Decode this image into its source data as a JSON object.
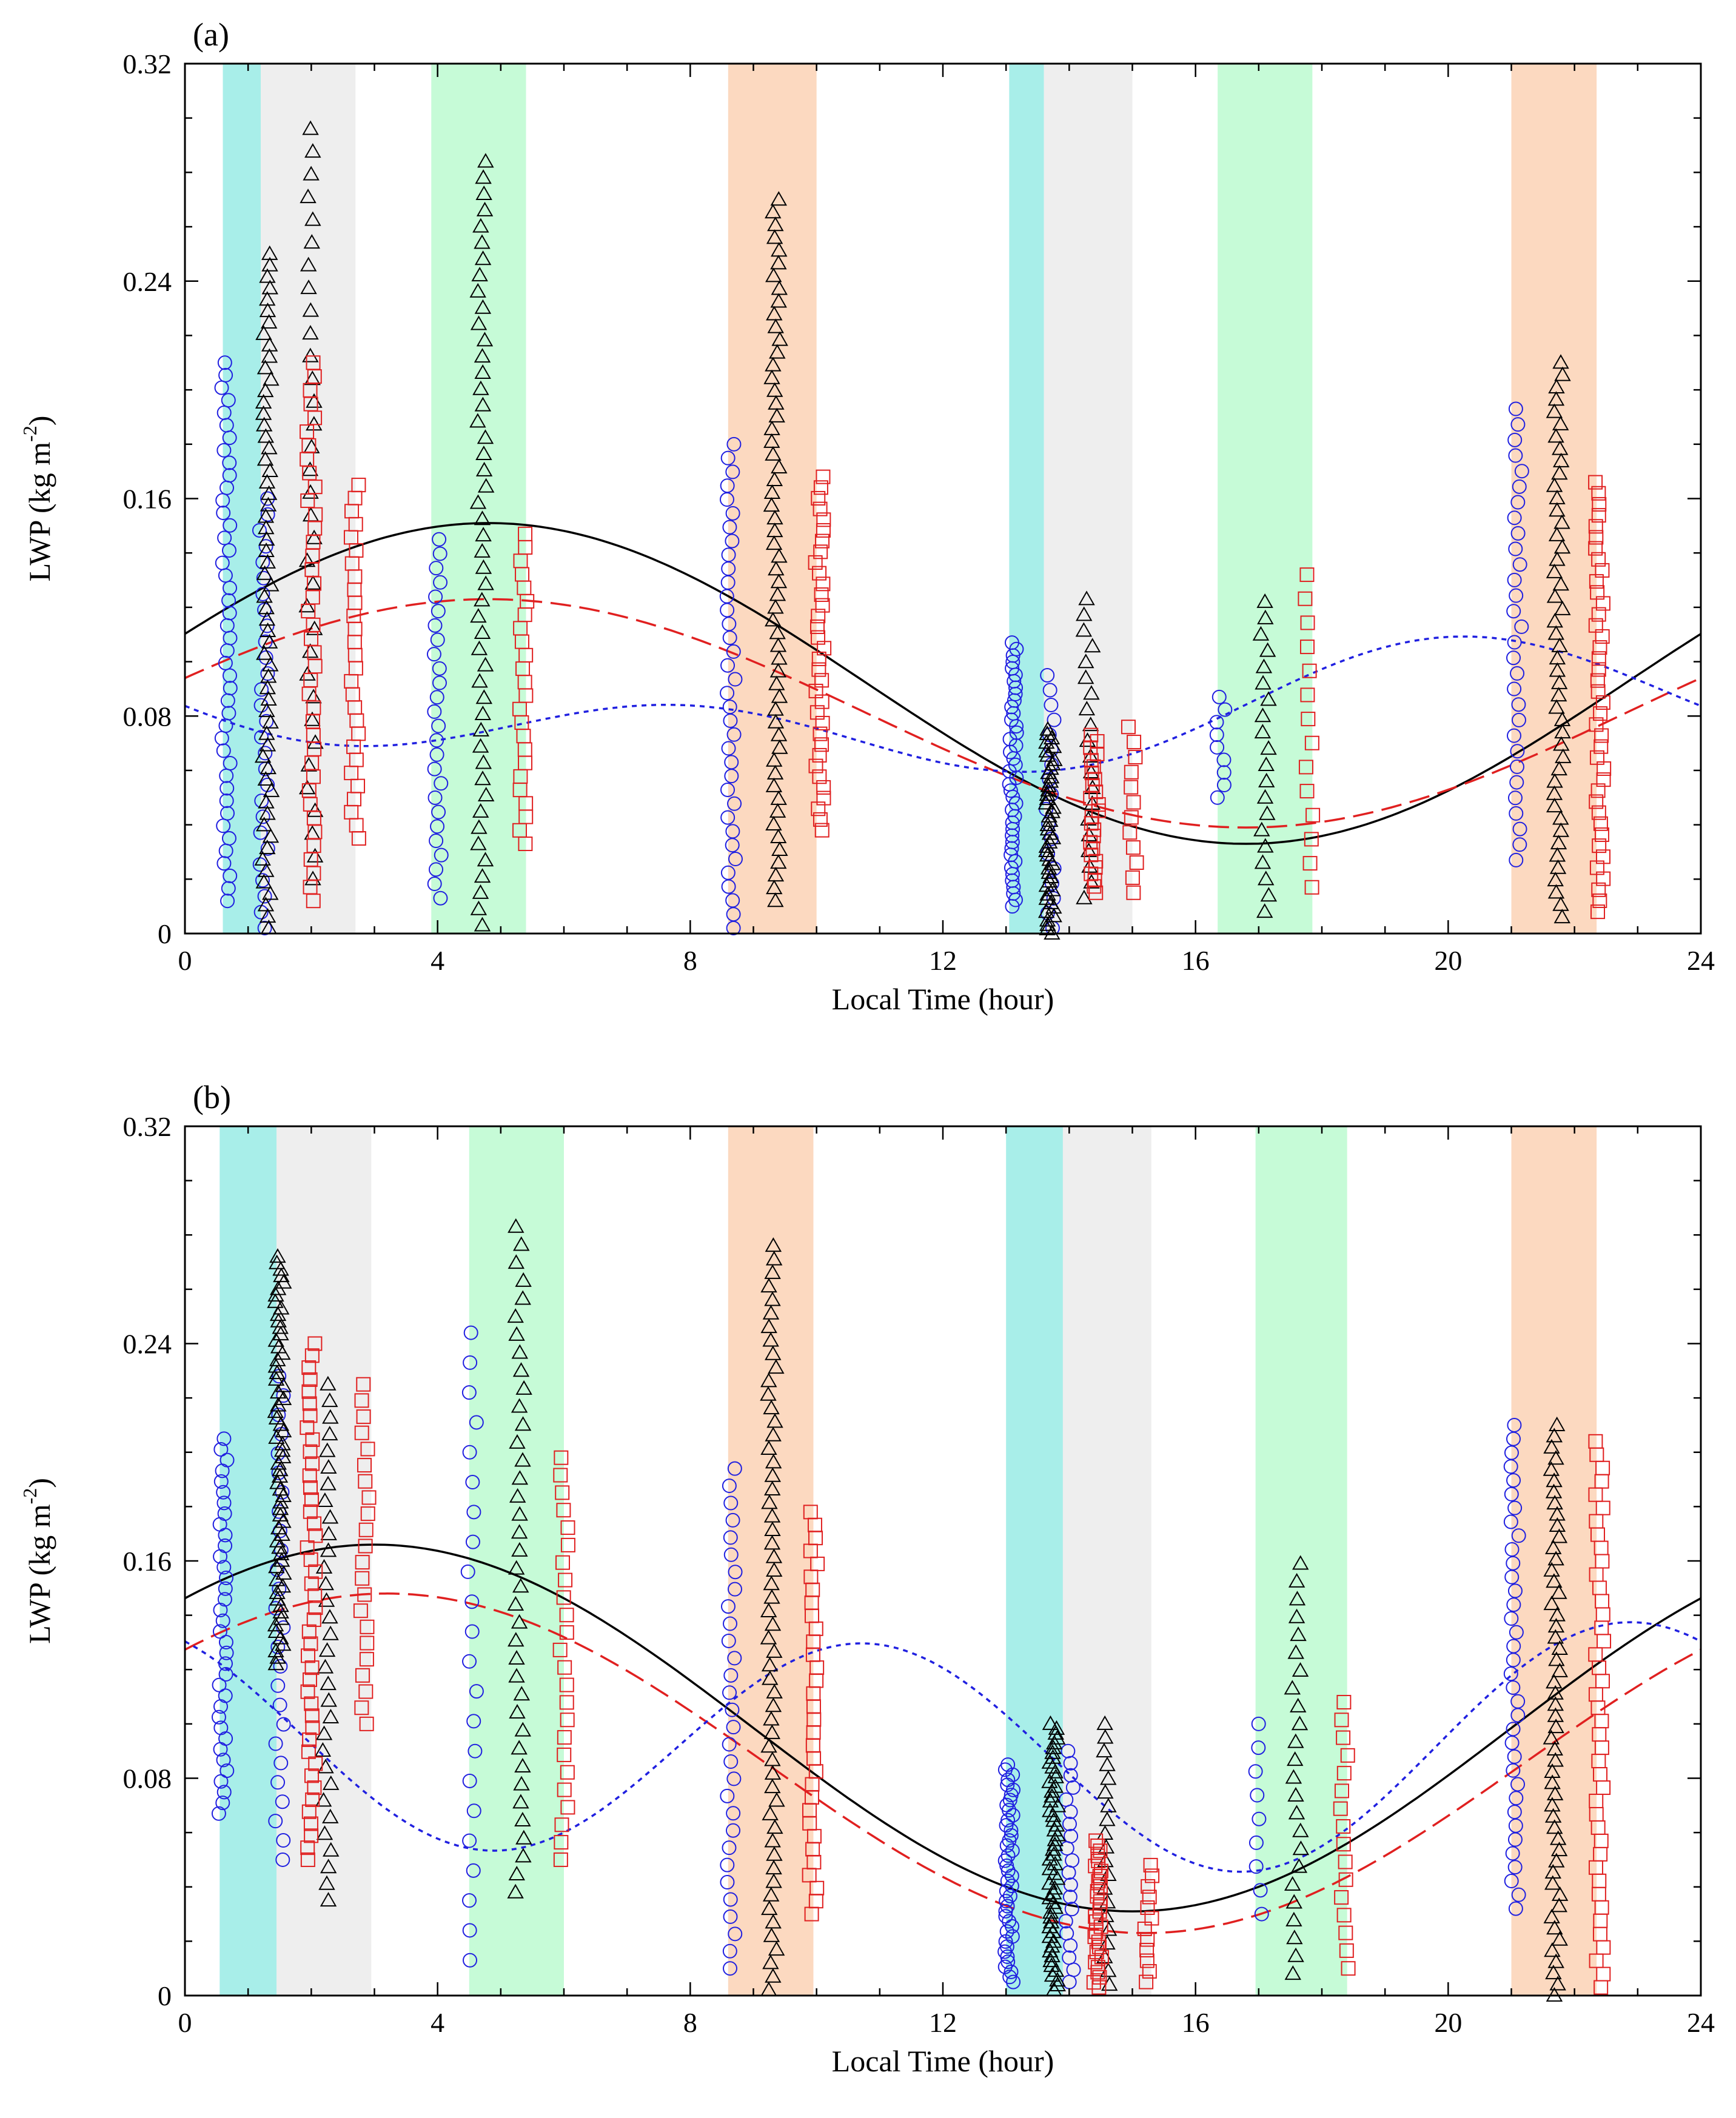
{
  "chart_data": [
    {
      "type": "scatter",
      "panel_label": "(a)",
      "xlabel": "Local Time (hour)",
      "ylabel_main": "LWP (kg m",
      "ylabel_sup": "-2",
      "ylabel_close": ")",
      "xlim": [
        0,
        24
      ],
      "ylim": [
        0,
        0.32
      ],
      "xticks": [
        0,
        4,
        8,
        12,
        16,
        20,
        24
      ],
      "xtick_labels": [
        "0",
        "4",
        "8",
        "12",
        "16",
        "20",
        "24"
      ],
      "yticks": [
        0,
        0.08,
        0.16,
        0.24,
        0.32
      ],
      "ytick_labels": [
        "0",
        "0.08",
        "0.16",
        "0.24",
        "0.32"
      ],
      "bands": [
        {
          "x0": 0.6,
          "x1": 1.2,
          "color": "#a8eee9"
        },
        {
          "x0": 1.2,
          "x1": 2.7,
          "color": "#eeeeee"
        },
        {
          "x0": 3.9,
          "x1": 5.4,
          "color": "#c6fbd7"
        },
        {
          "x0": 8.6,
          "x1": 10.0,
          "color": "#fcd9c0"
        },
        {
          "x0": 13.05,
          "x1": 13.6,
          "color": "#a8eee9"
        },
        {
          "x0": 13.6,
          "x1": 15.0,
          "color": "#eeeeee"
        },
        {
          "x0": 16.35,
          "x1": 17.85,
          "color": "#c6fbd7"
        },
        {
          "x0": 21.0,
          "x1": 22.35,
          "color": "#fcd9c0"
        }
      ],
      "series": [
        {
          "name": "circles",
          "marker": "circle",
          "color": "#2020e0",
          "groups": [
            {
              "x": 0.65,
              "ymin": 0.012,
              "ymax": 0.21,
              "n": 44
            },
            {
              "x": 1.25,
              "ymin": 0.002,
              "ymax": 0.16,
              "n": 28
            },
            {
              "x": 4.0,
              "ymin": 0.013,
              "ymax": 0.145,
              "n": 26
            },
            {
              "x": 8.65,
              "ymin": 0.002,
              "ymax": 0.18,
              "n": 36
            },
            {
              "x": 13.1,
              "ymin": 0.01,
              "ymax": 0.107,
              "n": 42
            },
            {
              "x": 13.7,
              "ymin": 0.002,
              "ymax": 0.095,
              "n": 18
            },
            {
              "x": 16.4,
              "ymin": 0.05,
              "ymax": 0.087,
              "n": 9
            },
            {
              "x": 21.1,
              "ymin": 0.027,
              "ymax": 0.193,
              "n": 30
            }
          ]
        },
        {
          "name": "triangles",
          "marker": "triangle",
          "color": "#000000",
          "groups": [
            {
              "x": 1.3,
              "ymin": 0.002,
              "ymax": 0.25,
              "n": 60
            },
            {
              "x": 2.0,
              "ymin": 0.02,
              "ymax": 0.296,
              "n": 34
            },
            {
              "x": 4.7,
              "ymin": 0.003,
              "ymax": 0.284,
              "n": 48
            },
            {
              "x": 9.35,
              "ymin": 0.012,
              "ymax": 0.27,
              "n": 56
            },
            {
              "x": 13.7,
              "ymin": 0.0,
              "ymax": 0.075,
              "n": 48
            },
            {
              "x": 14.3,
              "ymin": 0.013,
              "ymax": 0.123,
              "n": 20
            },
            {
              "x": 17.1,
              "ymin": 0.008,
              "ymax": 0.122,
              "n": 20
            },
            {
              "x": 21.75,
              "ymin": 0.006,
              "ymax": 0.21,
              "n": 46
            }
          ]
        },
        {
          "name": "squares",
          "marker": "square",
          "color": "#e02020",
          "groups": [
            {
              "x": 2.0,
              "ymin": 0.012,
              "ymax": 0.21,
              "n": 40
            },
            {
              "x": 2.7,
              "ymin": 0.035,
              "ymax": 0.165,
              "n": 28
            },
            {
              "x": 5.35,
              "ymin": 0.033,
              "ymax": 0.147,
              "n": 24
            },
            {
              "x": 10.05,
              "ymin": 0.038,
              "ymax": 0.168,
              "n": 34
            },
            {
              "x": 14.4,
              "ymin": 0.015,
              "ymax": 0.073,
              "n": 26
            },
            {
              "x": 15.0,
              "ymin": 0.015,
              "ymax": 0.076,
              "n": 12
            },
            {
              "x": 17.8,
              "ymin": 0.017,
              "ymax": 0.132,
              "n": 14
            },
            {
              "x": 22.4,
              "ymin": 0.008,
              "ymax": 0.166,
              "n": 40
            }
          ]
        }
      ],
      "fits": [
        {
          "name": "solid",
          "color": "#000000",
          "dash": "",
          "mean": 0.092,
          "amp": 0.059,
          "peak_hour": 4.8
        },
        {
          "name": "long-dash",
          "color": "#e02020",
          "dash": "34 14",
          "mean": 0.081,
          "amp": 0.042,
          "peak_hour": 4.8
        },
        {
          "name": "short-dash",
          "color": "#2020e0",
          "dash": "8 8",
          "mean": 0.081,
          "amp1": 0.0135,
          "peak1_hour": 21.4,
          "amp2": 0.0155,
          "peak2_hour": 8.0
        }
      ]
    },
    {
      "type": "scatter",
      "panel_label": "(b)",
      "xlabel": "Local Time (hour)",
      "ylabel_main": "LWP (kg m",
      "ylabel_sup": "-2",
      "ylabel_close": ")",
      "xlim": [
        0,
        24
      ],
      "ylim": [
        0,
        0.32
      ],
      "xticks": [
        0,
        4,
        8,
        12,
        16,
        20,
        24
      ],
      "xtick_labels": [
        "0",
        "4",
        "8",
        "12",
        "16",
        "20",
        "24"
      ],
      "yticks": [
        0,
        0.08,
        0.16,
        0.24,
        0.32
      ],
      "ytick_labels": [
        "0",
        "0.08",
        "0.16",
        "0.24",
        "0.32"
      ],
      "bands": [
        {
          "x0": 0.55,
          "x1": 1.45,
          "color": "#a8eee9"
        },
        {
          "x0": 1.45,
          "x1": 2.95,
          "color": "#eeeeee"
        },
        {
          "x0": 4.5,
          "x1": 6.0,
          "color": "#c6fbd7"
        },
        {
          "x0": 8.6,
          "x1": 9.95,
          "color": "#fcd9c0"
        },
        {
          "x0": 13.0,
          "x1": 13.9,
          "color": "#a8eee9"
        },
        {
          "x0": 13.9,
          "x1": 15.3,
          "color": "#eeeeee"
        },
        {
          "x0": 16.95,
          "x1": 18.4,
          "color": "#c6fbd7"
        },
        {
          "x0": 21.0,
          "x1": 22.35,
          "color": "#fcd9c0"
        }
      ],
      "series": [
        {
          "name": "circles",
          "marker": "circle",
          "color": "#2020e0",
          "groups": [
            {
              "x": 0.6,
              "ymin": 0.067,
              "ymax": 0.205,
              "n": 36
            },
            {
              "x": 1.5,
              "ymin": 0.05,
              "ymax": 0.228,
              "n": 26
            },
            {
              "x": 4.55,
              "ymin": 0.013,
              "ymax": 0.244,
              "n": 22
            },
            {
              "x": 8.65,
              "ymin": 0.01,
              "ymax": 0.194,
              "n": 30
            },
            {
              "x": 13.05,
              "ymin": 0.005,
              "ymax": 0.085,
              "n": 44
            },
            {
              "x": 14.0,
              "ymin": 0.005,
              "ymax": 0.09,
              "n": 20
            },
            {
              "x": 17.0,
              "ymin": 0.03,
              "ymax": 0.1,
              "n": 9
            },
            {
              "x": 21.05,
              "ymin": 0.032,
              "ymax": 0.21,
              "n": 36
            }
          ]
        },
        {
          "name": "triangles",
          "marker": "triangle",
          "color": "#000000",
          "groups": [
            {
              "x": 1.5,
              "ymin": 0.122,
              "ymax": 0.272,
              "n": 64
            },
            {
              "x": 2.25,
              "ymin": 0.035,
              "ymax": 0.225,
              "n": 32
            },
            {
              "x": 5.3,
              "ymin": 0.038,
              "ymax": 0.283,
              "n": 38
            },
            {
              "x": 9.3,
              "ymin": 0.002,
              "ymax": 0.276,
              "n": 56
            },
            {
              "x": 13.75,
              "ymin": 0.002,
              "ymax": 0.1,
              "n": 56
            },
            {
              "x": 14.6,
              "ymin": 0.004,
              "ymax": 0.1,
              "n": 20
            },
            {
              "x": 17.6,
              "ymin": 0.008,
              "ymax": 0.159,
              "n": 24
            },
            {
              "x": 21.7,
              "ymin": 0.0,
              "ymax": 0.21,
              "n": 52
            }
          ]
        },
        {
          "name": "squares",
          "marker": "square",
          "color": "#e02020",
          "groups": [
            {
              "x": 2.0,
              "ymin": 0.05,
              "ymax": 0.24,
              "n": 44
            },
            {
              "x": 2.85,
              "ymin": 0.1,
              "ymax": 0.225,
              "n": 22
            },
            {
              "x": 6.0,
              "ymin": 0.05,
              "ymax": 0.198,
              "n": 24
            },
            {
              "x": 9.95,
              "ymin": 0.03,
              "ymax": 0.178,
              "n": 32
            },
            {
              "x": 14.45,
              "ymin": 0.003,
              "ymax": 0.057,
              "n": 30
            },
            {
              "x": 15.25,
              "ymin": 0.005,
              "ymax": 0.048,
              "n": 12
            },
            {
              "x": 18.35,
              "ymin": 0.01,
              "ymax": 0.108,
              "n": 16
            },
            {
              "x": 22.4,
              "ymin": 0.003,
              "ymax": 0.204,
              "n": 42
            }
          ]
        }
      ],
      "fits": [
        {
          "name": "solid",
          "color": "#000000",
          "dash": "",
          "mean": 0.0985,
          "amp": 0.0675,
          "peak_hour": 3.0
        },
        {
          "name": "long-dash",
          "color": "#e02020",
          "dash": "34 14",
          "mean": 0.0855,
          "amp": 0.0625,
          "peak_hour": 3.2
        },
        {
          "name": "short-dash",
          "color": "#2020e0",
          "dash": "8 8",
          "mean": 0.0915,
          "amp1": 0.0055,
          "peak1_hour": 1.8,
          "amp2": 0.042,
          "peak2_hour": 22.8
        }
      ]
    }
  ]
}
